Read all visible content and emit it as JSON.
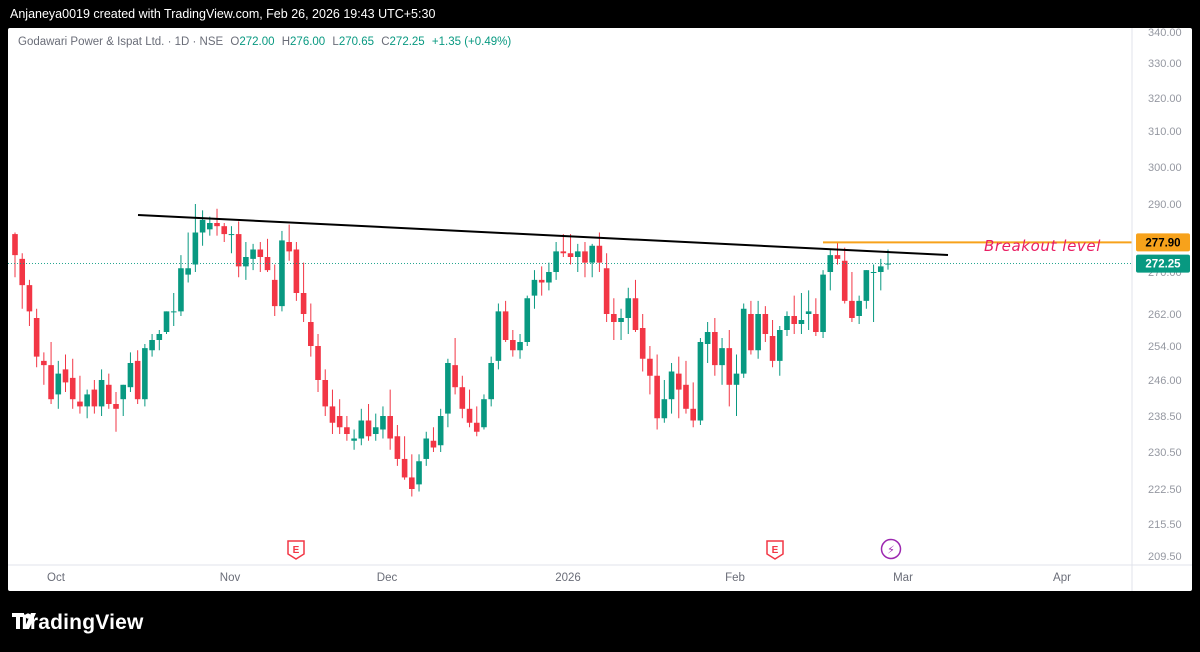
{
  "header": {
    "credit": "Anjaneya0019 created with TradingView.com, Feb 26, 2026 19:43 UTC+5:30"
  },
  "legend": {
    "symbol": "Godawari Power & Ispat Ltd. · 1D · NSE",
    "open_key": "O",
    "open": "272.00",
    "high_key": "H",
    "high": "276.00",
    "low_key": "L",
    "low": "270.65",
    "close_key": "C",
    "close": "272.25",
    "change": "+1.35 (+0.49%)"
  },
  "footer": {
    "brand": "TradingView"
  },
  "colors": {
    "up": "#089981",
    "down": "#f23645",
    "trendline": "#000000",
    "breakout": "#f7a21b",
    "annotation": "#e91e63",
    "price_tag": "#089981"
  },
  "chart_data": {
    "type": "candlestick",
    "y_axis": {
      "ticks": [
        "340.00",
        "330.00",
        "320.00",
        "310.00",
        "300.00",
        "290.00",
        "278.00",
        "270.00",
        "262.00",
        "254.00",
        "246.00",
        "238.50",
        "230.50",
        "222.50",
        "215.50",
        "209.50"
      ]
    },
    "x_axis": {
      "labels": [
        "Oct",
        "Nov",
        "Dec",
        "2026",
        "Feb",
        "Mar",
        "Apr"
      ]
    },
    "price_labels": {
      "breakout": "277.90",
      "last": "272.25"
    },
    "annotation": "Breakout level",
    "events": [
      "E",
      "E",
      "⚡"
    ],
    "candles": [
      [
        280.5,
        281.0,
        269.0,
        274.5
      ],
      [
        273.5,
        275.0,
        263.0,
        267.5
      ],
      [
        267.5,
        268.5,
        259.0,
        262.5
      ],
      [
        261.0,
        263.0,
        249.0,
        251.5
      ],
      [
        250.5,
        252.5,
        245.0,
        249.5
      ],
      [
        249.5,
        255.0,
        241.0,
        242.0
      ],
      [
        243.0,
        250.5,
        240.0,
        247.5
      ],
      [
        248.5,
        252.0,
        243.5,
        245.5
      ],
      [
        246.5,
        251.0,
        240.0,
        242.0
      ],
      [
        241.5,
        247.0,
        239.0,
        240.5
      ],
      [
        240.5,
        244.0,
        238.0,
        243.0
      ],
      [
        244.0,
        246.0,
        239.0,
        240.5
      ],
      [
        240.5,
        248.5,
        238.5,
        246.0
      ],
      [
        245.0,
        247.5,
        240.0,
        241.0
      ],
      [
        241.0,
        243.5,
        235.0,
        240.0
      ],
      [
        242.0,
        245.0,
        238.5,
        245.0
      ],
      [
        244.5,
        252.5,
        243.5,
        250.0
      ],
      [
        250.5,
        253.0,
        241.0,
        242.0
      ],
      [
        242.0,
        254.5,
        240.5,
        253.5
      ],
      [
        253.0,
        257.0,
        251.5,
        255.5
      ],
      [
        255.5,
        258.0,
        253.0,
        257.0
      ],
      [
        257.5,
        262.5,
        257.0,
        262.5
      ],
      [
        262.5,
        266.0,
        259.0,
        262.5
      ],
      [
        262.5,
        274.5,
        261.5,
        271.0
      ],
      [
        269.5,
        281.0,
        268.0,
        271.0
      ],
      [
        272.0,
        290.0,
        270.0,
        281.0
      ],
      [
        281.0,
        288.0,
        277.0,
        285.0
      ],
      [
        282.0,
        286.0,
        280.0,
        284.0
      ],
      [
        284.0,
        288.5,
        280.0,
        283.0
      ],
      [
        283.0,
        284.0,
        278.0,
        280.5
      ],
      [
        280.5,
        283.0,
        275.0,
        280.5
      ],
      [
        280.5,
        284.5,
        269.0,
        271.5
      ],
      [
        271.5,
        278.0,
        268.5,
        274.0
      ],
      [
        273.5,
        277.5,
        270.5,
        276.0
      ],
      [
        276.0,
        278.0,
        270.0,
        274.0
      ],
      [
        274.0,
        279.0,
        270.0,
        270.5
      ],
      [
        268.5,
        272.0,
        261.5,
        263.5
      ],
      [
        263.5,
        281.5,
        262.5,
        278.5
      ],
      [
        278.0,
        283.5,
        273.0,
        275.5
      ],
      [
        276.0,
        278.0,
        264.5,
        266.0
      ],
      [
        266.0,
        272.5,
        260.0,
        262.0
      ],
      [
        260.0,
        264.0,
        251.5,
        254.0
      ],
      [
        254.0,
        257.0,
        243.5,
        246.0
      ],
      [
        246.0,
        248.5,
        238.5,
        240.5
      ],
      [
        240.5,
        244.0,
        234.5,
        237.0
      ],
      [
        238.5,
        242.0,
        234.5,
        236.0
      ],
      [
        236.0,
        238.5,
        233.0,
        234.5
      ],
      [
        233.0,
        235.5,
        231.0,
        233.5
      ],
      [
        233.5,
        240.0,
        232.0,
        237.5
      ],
      [
        237.5,
        241.0,
        233.0,
        234.0
      ],
      [
        234.5,
        239.0,
        233.0,
        236.0
      ],
      [
        235.5,
        240.5,
        233.5,
        238.5
      ],
      [
        238.5,
        244.0,
        231.0,
        233.5
      ],
      [
        234.0,
        236.5,
        227.5,
        229.0
      ],
      [
        229.0,
        234.0,
        224.5,
        225.0
      ],
      [
        225.0,
        230.0,
        221.0,
        222.5
      ],
      [
        223.5,
        230.0,
        222.0,
        228.5
      ],
      [
        229.0,
        235.0,
        227.5,
        233.5
      ],
      [
        233.0,
        236.0,
        230.5,
        231.5
      ],
      [
        232.0,
        240.0,
        230.5,
        238.5
      ],
      [
        239.0,
        251.0,
        236.0,
        250.0
      ],
      [
        249.5,
        256.0,
        243.0,
        244.5
      ],
      [
        244.5,
        247.0,
        238.0,
        240.0
      ],
      [
        240.0,
        244.0,
        236.0,
        237.0
      ],
      [
        237.0,
        240.5,
        234.0,
        235.0
      ],
      [
        236.0,
        243.0,
        235.5,
        242.0
      ],
      [
        242.0,
        251.5,
        240.5,
        250.0
      ],
      [
        250.5,
        264.0,
        248.5,
        262.5
      ],
      [
        262.5,
        264.5,
        255.0,
        255.5
      ],
      [
        255.5,
        258.0,
        251.5,
        253.0
      ],
      [
        253.0,
        257.0,
        251.0,
        255.0
      ],
      [
        255.0,
        265.5,
        254.0,
        265.0
      ],
      [
        265.5,
        270.5,
        263.0,
        268.5
      ],
      [
        268.5,
        271.5,
        265.5,
        268.0
      ],
      [
        268.0,
        272.5,
        266.5,
        270.0
      ],
      [
        270.0,
        278.0,
        268.5,
        275.5
      ],
      [
        275.5,
        280.5,
        274.0,
        275.0
      ],
      [
        275.0,
        280.5,
        272.0,
        274.0
      ],
      [
        274.0,
        277.5,
        270.0,
        275.5
      ],
      [
        275.5,
        278.0,
        269.0,
        272.5
      ],
      [
        272.5,
        277.5,
        269.0,
        277.0
      ],
      [
        277.0,
        281.0,
        270.0,
        272.5
      ],
      [
        271.0,
        275.0,
        260.0,
        262.0
      ],
      [
        262.0,
        265.0,
        255.5,
        260.0
      ],
      [
        260.0,
        263.0,
        255.5,
        261.0
      ],
      [
        261.0,
        267.0,
        257.0,
        265.0
      ],
      [
        265.0,
        268.5,
        257.5,
        258.0
      ],
      [
        258.5,
        262.0,
        248.0,
        251.0
      ],
      [
        251.0,
        254.0,
        243.0,
        247.0
      ],
      [
        247.0,
        252.0,
        235.5,
        238.0
      ],
      [
        238.0,
        246.0,
        237.0,
        242.0
      ],
      [
        242.0,
        250.0,
        239.0,
        248.0
      ],
      [
        247.5,
        251.5,
        238.0,
        244.0
      ],
      [
        245.0,
        250.5,
        239.0,
        240.0
      ],
      [
        240.0,
        245.5,
        236.0,
        237.5
      ],
      [
        237.5,
        256.0,
        236.5,
        255.0
      ],
      [
        254.5,
        260.0,
        250.0,
        257.5
      ],
      [
        257.5,
        261.0,
        247.0,
        249.5
      ],
      [
        249.5,
        256.0,
        245.0,
        253.5
      ],
      [
        253.5,
        258.0,
        240.5,
        245.0
      ],
      [
        245.0,
        252.0,
        238.5,
        247.5
      ],
      [
        247.5,
        264.0,
        246.5,
        263.0
      ],
      [
        262.0,
        264.5,
        252.0,
        253.0
      ],
      [
        253.0,
        264.5,
        251.0,
        262.0
      ],
      [
        262.0,
        263.5,
        255.0,
        257.0
      ],
      [
        256.5,
        260.5,
        249.0,
        250.5
      ],
      [
        250.5,
        259.0,
        247.0,
        258.0
      ],
      [
        258.0,
        262.5,
        256.5,
        261.5
      ],
      [
        261.5,
        265.5,
        257.0,
        259.5
      ],
      [
        259.5,
        266.0,
        257.0,
        260.5
      ],
      [
        262.0,
        266.5,
        258.0,
        262.5
      ],
      [
        262.0,
        265.0,
        256.5,
        257.5
      ],
      [
        257.5,
        270.5,
        256.0,
        269.5
      ],
      [
        270.0,
        276.0,
        266.5,
        274.5
      ],
      [
        274.5,
        278.0,
        272.0,
        273.5
      ],
      [
        273.0,
        276.5,
        264.0,
        264.5
      ],
      [
        264.5,
        270.0,
        260.0,
        261.0
      ],
      [
        261.5,
        265.5,
        259.5,
        264.5
      ],
      [
        264.5,
        270.5,
        263.0,
        270.5
      ],
      [
        270.0,
        272.0,
        260.0,
        270.0
      ],
      [
        270.0,
        273.5,
        266.5,
        271.5
      ],
      [
        272.0,
        276.0,
        270.65,
        272.25
      ]
    ]
  }
}
